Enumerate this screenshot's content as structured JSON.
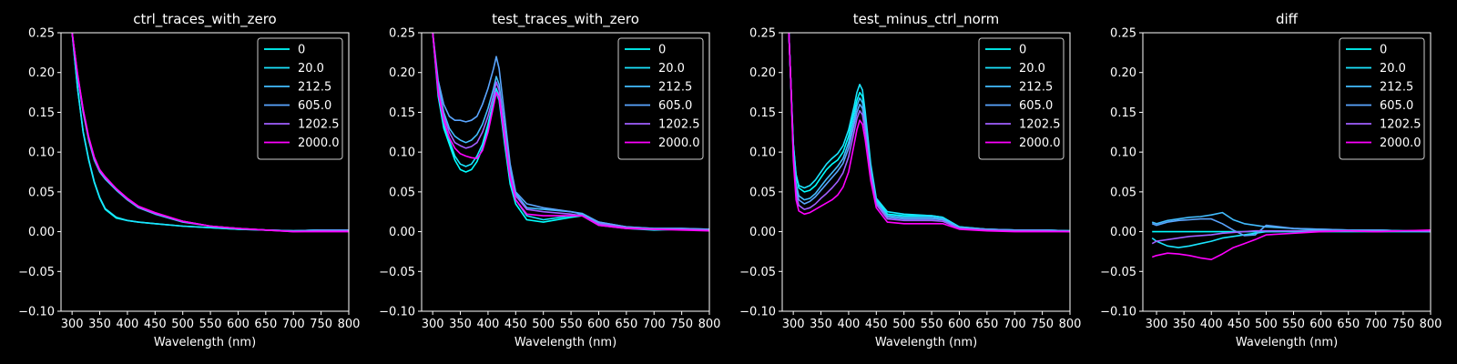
{
  "colors": {
    "background": "#000000",
    "foreground": "#ffffff",
    "series": [
      "#00ffff",
      "#1ae5ff",
      "#42bdff",
      "#5aa5ff",
      "#a05fff",
      "#ff00ff"
    ]
  },
  "chart_data": [
    {
      "type": "line",
      "title": "ctrl_traces_with_zero",
      "xlabel": "Wavelength (nm)",
      "ylabel": "",
      "xlim": [
        280,
        800
      ],
      "ylim": [
        -0.1,
        0.25
      ],
      "xticks": [
        "300",
        "350",
        "400",
        "450",
        "500",
        "550",
        "600",
        "650",
        "700",
        "750",
        "800"
      ],
      "yticks": [
        "0.25",
        "0.20",
        "0.15",
        "0.10",
        "0.05",
        "0.00",
        "−0.05",
        "−0.10"
      ],
      "grid": false,
      "legend": "top-right",
      "x": [
        300,
        310,
        320,
        330,
        340,
        350,
        360,
        380,
        400,
        420,
        450,
        500,
        550,
        600,
        650,
        700,
        750,
        800
      ],
      "series": [
        {
          "name": "0",
          "values": [
            0.25,
            0.18,
            0.125,
            0.09,
            0.062,
            0.042,
            0.028,
            0.017,
            0.014,
            0.012,
            0.01,
            0.007,
            0.005,
            0.003,
            0.002,
            0.001,
            0.002,
            0.002
          ]
        },
        {
          "name": "20.0",
          "values": [
            0.25,
            0.18,
            0.126,
            0.091,
            0.063,
            0.043,
            0.029,
            0.018,
            0.014,
            0.012,
            0.01,
            0.007,
            0.005,
            0.003,
            0.002,
            0.001,
            0.002,
            0.002
          ]
        },
        {
          "name": "212.5",
          "values": [
            0.25,
            0.195,
            0.15,
            0.115,
            0.09,
            0.075,
            0.066,
            0.052,
            0.04,
            0.03,
            0.022,
            0.012,
            0.007,
            0.004,
            0.002,
            0.001,
            0.002,
            0.002
          ]
        },
        {
          "name": "605.0",
          "values": [
            0.25,
            0.196,
            0.152,
            0.117,
            0.092,
            0.076,
            0.067,
            0.053,
            0.04,
            0.031,
            0.023,
            0.013,
            0.007,
            0.004,
            0.002,
            0.001,
            0.002,
            0.002
          ]
        },
        {
          "name": "1202.5",
          "values": [
            0.25,
            0.197,
            0.153,
            0.118,
            0.093,
            0.077,
            0.068,
            0.054,
            0.041,
            0.031,
            0.023,
            0.013,
            0.007,
            0.004,
            0.002,
            0.0,
            0.001,
            0.001
          ]
        },
        {
          "name": "2000.0",
          "values": [
            0.25,
            0.198,
            0.154,
            0.119,
            0.094,
            0.078,
            0.069,
            0.054,
            0.042,
            0.032,
            0.024,
            0.013,
            0.007,
            0.004,
            0.002,
            0.0,
            0.0,
            0.0
          ]
        }
      ]
    },
    {
      "type": "line",
      "title": "test_traces_with_zero",
      "xlabel": "Wavelength (nm)",
      "ylabel": "",
      "xlim": [
        280,
        800
      ],
      "ylim": [
        -0.1,
        0.25
      ],
      "xticks": [
        "300",
        "350",
        "400",
        "450",
        "500",
        "550",
        "600",
        "650",
        "700",
        "750",
        "800"
      ],
      "yticks": [
        "0.25",
        "0.20",
        "0.15",
        "0.10",
        "0.05",
        "0.00",
        "−0.05",
        "−0.10"
      ],
      "grid": false,
      "legend": "top-right",
      "x": [
        300,
        310,
        320,
        330,
        340,
        350,
        360,
        370,
        380,
        390,
        400,
        410,
        415,
        420,
        430,
        440,
        450,
        470,
        500,
        550,
        570,
        600,
        650,
        700,
        750,
        800
      ],
      "series": [
        {
          "name": "0",
          "values": [
            0.25,
            0.17,
            0.13,
            0.11,
            0.09,
            0.078,
            0.075,
            0.078,
            0.088,
            0.105,
            0.13,
            0.16,
            0.175,
            0.165,
            0.11,
            0.06,
            0.035,
            0.015,
            0.012,
            0.018,
            0.02,
            0.008,
            0.004,
            0.002,
            0.003,
            0.002
          ]
        },
        {
          "name": "20.0",
          "values": [
            0.25,
            0.175,
            0.135,
            0.115,
            0.095,
            0.085,
            0.082,
            0.085,
            0.095,
            0.11,
            0.135,
            0.165,
            0.18,
            0.17,
            0.115,
            0.065,
            0.04,
            0.02,
            0.015,
            0.02,
            0.022,
            0.01,
            0.005,
            0.003,
            0.003,
            0.002
          ]
        },
        {
          "name": "212.5",
          "values": [
            0.25,
            0.185,
            0.15,
            0.13,
            0.12,
            0.115,
            0.112,
            0.115,
            0.122,
            0.135,
            0.155,
            0.18,
            0.195,
            0.185,
            0.13,
            0.078,
            0.048,
            0.03,
            0.028,
            0.025,
            0.023,
            0.012,
            0.006,
            0.004,
            0.004,
            0.003
          ]
        },
        {
          "name": "605.0",
          "values": [
            0.25,
            0.19,
            0.16,
            0.145,
            0.14,
            0.14,
            0.138,
            0.14,
            0.145,
            0.16,
            0.18,
            0.205,
            0.22,
            0.205,
            0.145,
            0.085,
            0.05,
            0.035,
            0.03,
            0.025,
            0.022,
            0.012,
            0.006,
            0.004,
            0.004,
            0.003
          ]
        },
        {
          "name": "1202.5",
          "values": [
            0.25,
            0.18,
            0.145,
            0.125,
            0.112,
            0.108,
            0.105,
            0.107,
            0.112,
            0.125,
            0.145,
            0.172,
            0.188,
            0.178,
            0.125,
            0.072,
            0.045,
            0.028,
            0.025,
            0.022,
            0.02,
            0.01,
            0.005,
            0.003,
            0.003,
            0.002
          ]
        },
        {
          "name": "2000.0",
          "values": [
            0.25,
            0.175,
            0.14,
            0.118,
            0.105,
            0.098,
            0.095,
            0.093,
            0.092,
            0.102,
            0.125,
            0.158,
            0.175,
            0.168,
            0.118,
            0.068,
            0.04,
            0.022,
            0.02,
            0.02,
            0.02,
            0.008,
            0.004,
            0.003,
            0.002,
            0.001
          ]
        }
      ]
    },
    {
      "type": "line",
      "title": "test_minus_ctrl_norm",
      "xlabel": "Wavelength (nm)",
      "ylabel": "",
      "xlim": [
        280,
        800
      ],
      "ylim": [
        -0.1,
        0.25
      ],
      "xticks": [
        "300",
        "350",
        "400",
        "450",
        "500",
        "550",
        "600",
        "650",
        "700",
        "750",
        "800"
      ],
      "yticks": [
        "0.25",
        "0.20",
        "0.15",
        "0.10",
        "0.05",
        "0.00",
        "−0.05",
        "−0.10"
      ],
      "grid": false,
      "legend": "top-right",
      "x": [
        292,
        296,
        300,
        305,
        310,
        320,
        330,
        340,
        350,
        360,
        370,
        380,
        390,
        400,
        410,
        415,
        420,
        425,
        430,
        440,
        450,
        470,
        500,
        550,
        570,
        600,
        650,
        700,
        750,
        800
      ],
      "series": [
        {
          "name": "0",
          "values": [
            0.25,
            0.18,
            0.11,
            0.07,
            0.055,
            0.05,
            0.052,
            0.058,
            0.068,
            0.078,
            0.085,
            0.09,
            0.1,
            0.12,
            0.15,
            0.165,
            0.175,
            0.17,
            0.145,
            0.08,
            0.04,
            0.022,
            0.02,
            0.02,
            0.018,
            0.006,
            0.003,
            0.002,
            0.002,
            0.001
          ]
        },
        {
          "name": "20.0",
          "values": [
            0.25,
            0.18,
            0.11,
            0.072,
            0.058,
            0.055,
            0.058,
            0.065,
            0.075,
            0.085,
            0.092,
            0.098,
            0.108,
            0.128,
            0.158,
            0.175,
            0.185,
            0.178,
            0.15,
            0.085,
            0.042,
            0.025,
            0.022,
            0.02,
            0.018,
            0.006,
            0.003,
            0.002,
            0.002,
            0.001
          ]
        },
        {
          "name": "212.5",
          "values": [
            0.25,
            0.18,
            0.1,
            0.06,
            0.045,
            0.04,
            0.042,
            0.048,
            0.057,
            0.066,
            0.074,
            0.082,
            0.092,
            0.112,
            0.142,
            0.158,
            0.168,
            0.162,
            0.138,
            0.078,
            0.038,
            0.02,
            0.018,
            0.018,
            0.016,
            0.005,
            0.003,
            0.002,
            0.002,
            0.001
          ]
        },
        {
          "name": "605.0",
          "values": [
            0.25,
            0.18,
            0.1,
            0.055,
            0.04,
            0.035,
            0.038,
            0.044,
            0.052,
            0.06,
            0.068,
            0.076,
            0.086,
            0.105,
            0.135,
            0.15,
            0.16,
            0.155,
            0.132,
            0.074,
            0.036,
            0.018,
            0.016,
            0.016,
            0.015,
            0.005,
            0.003,
            0.002,
            0.002,
            0.001
          ]
        },
        {
          "name": "1202.5",
          "values": [
            0.25,
            0.18,
            0.095,
            0.048,
            0.033,
            0.028,
            0.03,
            0.035,
            0.042,
            0.048,
            0.055,
            0.063,
            0.074,
            0.094,
            0.126,
            0.142,
            0.152,
            0.147,
            0.125,
            0.07,
            0.034,
            0.016,
            0.014,
            0.014,
            0.013,
            0.004,
            0.002,
            0.001,
            0.001,
            0.0
          ]
        },
        {
          "name": "2000.0",
          "values": [
            0.25,
            0.18,
            0.09,
            0.04,
            0.026,
            0.022,
            0.024,
            0.028,
            0.032,
            0.036,
            0.04,
            0.046,
            0.056,
            0.075,
            0.11,
            0.128,
            0.14,
            0.135,
            0.115,
            0.064,
            0.03,
            0.012,
            0.01,
            0.01,
            0.01,
            0.003,
            0.001,
            0.0,
            0.0,
            0.0
          ]
        }
      ]
    },
    {
      "type": "line",
      "title": "diff",
      "xlabel": "Wavelength (nm)",
      "ylabel": "",
      "xlim": [
        275,
        800
      ],
      "ylim": [
        -0.1,
        0.25
      ],
      "xticks": [
        "300",
        "350",
        "400",
        "450",
        "500",
        "550",
        "600",
        "650",
        "700",
        "750",
        "800"
      ],
      "yticks": [
        "0.25",
        "0.20",
        "0.15",
        "0.10",
        "0.05",
        "0.00",
        "−0.05",
        "−0.10"
      ],
      "grid": false,
      "legend": "top-right",
      "x": [
        292,
        300,
        320,
        340,
        360,
        380,
        400,
        420,
        440,
        460,
        480,
        500,
        550,
        600,
        650,
        700,
        750,
        800
      ],
      "series": [
        {
          "name": "0",
          "values": [
            0.0,
            0.0,
            0.0,
            0.0,
            0.0,
            0.0,
            0.0,
            0.0,
            0.0,
            0.0,
            0.0,
            0.0,
            0.0,
            0.0,
            0.0,
            0.0,
            0.0,
            0.0
          ]
        },
        {
          "name": "20.0",
          "values": [
            -0.008,
            -0.012,
            -0.018,
            -0.02,
            -0.018,
            -0.015,
            -0.012,
            -0.008,
            -0.006,
            -0.004,
            -0.002,
            0.0,
            0.001,
            0.002,
            0.002,
            0.002,
            0.001,
            0.001
          ]
        },
        {
          "name": "212.5",
          "values": [
            0.012,
            0.01,
            0.014,
            0.016,
            0.018,
            0.019,
            0.021,
            0.024,
            0.015,
            0.01,
            0.008,
            0.006,
            0.004,
            0.003,
            0.002,
            0.002,
            0.001,
            0.001
          ]
        },
        {
          "name": "605.0",
          "values": [
            0.01,
            0.008,
            0.012,
            0.014,
            0.015,
            0.016,
            0.016,
            0.01,
            0.002,
            -0.005,
            -0.004,
            0.008,
            0.004,
            0.003,
            0.002,
            0.002,
            0.001,
            0.0
          ]
        },
        {
          "name": "1202.5",
          "values": [
            -0.015,
            -0.012,
            -0.01,
            -0.008,
            -0.006,
            -0.005,
            -0.004,
            -0.002,
            -0.001,
            0.0,
            0.001,
            0.001,
            0.001,
            0.001,
            0.001,
            0.0,
            0.001,
            0.001
          ]
        },
        {
          "name": "2000.0",
          "values": [
            -0.032,
            -0.03,
            -0.027,
            -0.028,
            -0.03,
            -0.033,
            -0.035,
            -0.028,
            -0.02,
            -0.015,
            -0.01,
            -0.004,
            -0.002,
            0.0,
            0.001,
            0.0,
            0.001,
            0.002
          ]
        }
      ]
    }
  ]
}
